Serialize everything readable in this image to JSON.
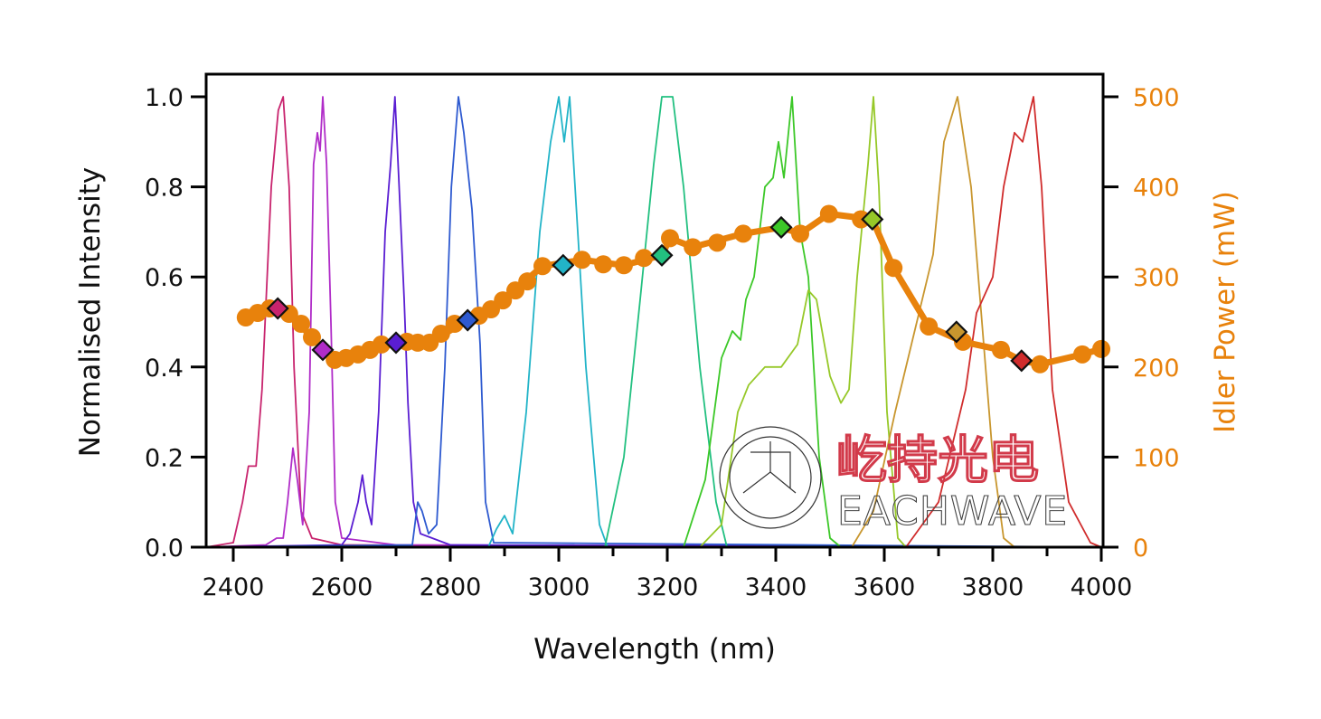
{
  "chart_data": {
    "type": "line",
    "title": "",
    "xlabel": "Wavelength (nm)",
    "ylabel": "Normalised Intensity",
    "y2label": "Idler Power (mW)",
    "xlim": [
      2350,
      4000
    ],
    "ylim": [
      0,
      1.0
    ],
    "y2lim": [
      0,
      500
    ],
    "grid": false,
    "xticks": [
      2400,
      2600,
      2800,
      3000,
      3200,
      3400,
      3600,
      3800,
      4000
    ],
    "xtick_labels": [
      "2400",
      "2600",
      "2800",
      "3000",
      "3200",
      "3400",
      "3600",
      "3800",
      "4000"
    ],
    "yticks": [
      0,
      0.2,
      0.4,
      0.6,
      0.8,
      1.0
    ],
    "ytick_labels": [
      "0.0",
      "0.2",
      "0.4",
      "0.6",
      "0.8",
      "1.0"
    ],
    "y2ticks": [
      0,
      100,
      200,
      300,
      400,
      500
    ],
    "y2tick_labels": [
      "0",
      "100",
      "200",
      "300",
      "400",
      "500"
    ],
    "accent_color": "#e8820c",
    "spectra": [
      {
        "name": "spectrum-2490",
        "color": "#c8246e",
        "points": [
          [
            2350,
            0
          ],
          [
            2400,
            0.01
          ],
          [
            2417,
            0.1
          ],
          [
            2428,
            0.18
          ],
          [
            2442,
            0.18
          ],
          [
            2453,
            0.35
          ],
          [
            2470,
            0.8
          ],
          [
            2483,
            0.97
          ],
          [
            2492,
            1.0
          ],
          [
            2503,
            0.8
          ],
          [
            2512,
            0.4
          ],
          [
            2525,
            0.08
          ],
          [
            2545,
            0.02
          ],
          [
            2600,
            0.005
          ],
          [
            4000,
            0
          ]
        ]
      },
      {
        "name": "spectrum-2565",
        "color": "#b02cc8",
        "points": [
          [
            2350,
            0
          ],
          [
            2460,
            0.005
          ],
          [
            2480,
            0.02
          ],
          [
            2492,
            0.02
          ],
          [
            2500,
            0.1
          ],
          [
            2510,
            0.22
          ],
          [
            2518,
            0.15
          ],
          [
            2528,
            0.05
          ],
          [
            2540,
            0.3
          ],
          [
            2548,
            0.85
          ],
          [
            2555,
            0.92
          ],
          [
            2560,
            0.88
          ],
          [
            2565,
            1.0
          ],
          [
            2572,
            0.85
          ],
          [
            2580,
            0.5
          ],
          [
            2588,
            0.1
          ],
          [
            2600,
            0.02
          ],
          [
            2700,
            0.005
          ],
          [
            4000,
            0
          ]
        ]
      },
      {
        "name": "spectrum-2700",
        "color": "#5a1ed2",
        "points": [
          [
            2350,
            0
          ],
          [
            2600,
            0.005
          ],
          [
            2615,
            0.03
          ],
          [
            2630,
            0.1
          ],
          [
            2638,
            0.16
          ],
          [
            2645,
            0.1
          ],
          [
            2655,
            0.05
          ],
          [
            2668,
            0.3
          ],
          [
            2680,
            0.7
          ],
          [
            2690,
            0.85
          ],
          [
            2698,
            1.0
          ],
          [
            2705,
            0.82
          ],
          [
            2715,
            0.55
          ],
          [
            2722,
            0.32
          ],
          [
            2732,
            0.1
          ],
          [
            2745,
            0.03
          ],
          [
            2800,
            0.005
          ],
          [
            4000,
            0
          ]
        ]
      },
      {
        "name": "spectrum-2820",
        "color": "#2e5ad0",
        "points": [
          [
            2350,
            0
          ],
          [
            2730,
            0.005
          ],
          [
            2740,
            0.1
          ],
          [
            2748,
            0.08
          ],
          [
            2760,
            0.03
          ],
          [
            2775,
            0.05
          ],
          [
            2790,
            0.4
          ],
          [
            2802,
            0.8
          ],
          [
            2815,
            1.0
          ],
          [
            2825,
            0.92
          ],
          [
            2840,
            0.75
          ],
          [
            2855,
            0.45
          ],
          [
            2865,
            0.1
          ],
          [
            2880,
            0.01
          ],
          [
            4000,
            0
          ]
        ]
      },
      {
        "name": "spectrum-3010",
        "color": "#22b4c8",
        "points": [
          [
            2350,
            0
          ],
          [
            2870,
            0
          ],
          [
            2885,
            0.04
          ],
          [
            2900,
            0.07
          ],
          [
            2915,
            0.03
          ],
          [
            2940,
            0.3
          ],
          [
            2965,
            0.7
          ],
          [
            2985,
            0.9
          ],
          [
            3000,
            1.0
          ],
          [
            3010,
            0.9
          ],
          [
            3020,
            1.0
          ],
          [
            3030,
            0.8
          ],
          [
            3050,
            0.4
          ],
          [
            3075,
            0.05
          ],
          [
            3090,
            0
          ],
          [
            4000,
            0
          ]
        ]
      },
      {
        "name": "spectrum-3200",
        "color": "#22c080",
        "points": [
          [
            2350,
            0
          ],
          [
            3085,
            0
          ],
          [
            3120,
            0.2
          ],
          [
            3150,
            0.55
          ],
          [
            3175,
            0.85
          ],
          [
            3190,
            1.0
          ],
          [
            3210,
            1.0
          ],
          [
            3230,
            0.8
          ],
          [
            3260,
            0.4
          ],
          [
            3290,
            0.1
          ],
          [
            3310,
            0
          ],
          [
            4000,
            0
          ]
        ]
      },
      {
        "name": "spectrum-3430",
        "color": "#3cc828",
        "points": [
          [
            2350,
            0
          ],
          [
            3230,
            0
          ],
          [
            3270,
            0.15
          ],
          [
            3300,
            0.42
          ],
          [
            3320,
            0.48
          ],
          [
            3335,
            0.46
          ],
          [
            3345,
            0.55
          ],
          [
            3360,
            0.6
          ],
          [
            3380,
            0.8
          ],
          [
            3395,
            0.82
          ],
          [
            3405,
            0.9
          ],
          [
            3415,
            0.82
          ],
          [
            3430,
            1.0
          ],
          [
            3445,
            0.7
          ],
          [
            3460,
            0.6
          ],
          [
            3480,
            0.2
          ],
          [
            3500,
            0.02
          ],
          [
            3520,
            0
          ],
          [
            4000,
            0
          ]
        ]
      },
      {
        "name": "spectrum-3580",
        "color": "#96c828",
        "points": [
          [
            2350,
            0
          ],
          [
            3260,
            0
          ],
          [
            3300,
            0.05
          ],
          [
            3330,
            0.3
          ],
          [
            3350,
            0.36
          ],
          [
            3380,
            0.4
          ],
          [
            3410,
            0.4
          ],
          [
            3440,
            0.45
          ],
          [
            3460,
            0.57
          ],
          [
            3475,
            0.55
          ],
          [
            3500,
            0.38
          ],
          [
            3520,
            0.32
          ],
          [
            3535,
            0.35
          ],
          [
            3550,
            0.6
          ],
          [
            3570,
            0.85
          ],
          [
            3580,
            1.0
          ],
          [
            3590,
            0.8
          ],
          [
            3605,
            0.3
          ],
          [
            3625,
            0.02
          ],
          [
            3640,
            0
          ],
          [
            4000,
            0
          ]
        ]
      },
      {
        "name": "spectrum-3735",
        "color": "#c8962e",
        "points": [
          [
            2350,
            0
          ],
          [
            3540,
            0
          ],
          [
            3580,
            0.08
          ],
          [
            3620,
            0.3
          ],
          [
            3660,
            0.5
          ],
          [
            3690,
            0.65
          ],
          [
            3710,
            0.9
          ],
          [
            3735,
            1.0
          ],
          [
            3760,
            0.8
          ],
          [
            3780,
            0.5
          ],
          [
            3800,
            0.2
          ],
          [
            3820,
            0.02
          ],
          [
            3840,
            0
          ],
          [
            4000,
            0
          ]
        ]
      },
      {
        "name": "spectrum-3875",
        "color": "#d02c2c",
        "points": [
          [
            2350,
            0
          ],
          [
            3640,
            0
          ],
          [
            3700,
            0.1
          ],
          [
            3750,
            0.35
          ],
          [
            3770,
            0.52
          ],
          [
            3800,
            0.6
          ],
          [
            3820,
            0.8
          ],
          [
            3840,
            0.92
          ],
          [
            3855,
            0.9
          ],
          [
            3875,
            1.0
          ],
          [
            3890,
            0.8
          ],
          [
            3910,
            0.35
          ],
          [
            3940,
            0.1
          ],
          [
            3980,
            0.01
          ],
          [
            4000,
            0
          ]
        ]
      }
    ],
    "idler_power": {
      "name": "Idler Power (mW)",
      "color": "#e8820c",
      "points": [
        [
          2423,
          255
        ],
        [
          2445,
          260
        ],
        [
          2467,
          265
        ],
        [
          2503,
          259
        ],
        [
          2525,
          248
        ],
        [
          2545,
          233
        ],
        [
          2587,
          208
        ],
        [
          2608,
          210
        ],
        [
          2630,
          214
        ],
        [
          2652,
          219
        ],
        [
          2673,
          225
        ],
        [
          2720,
          228
        ],
        [
          2740,
          227
        ],
        [
          2762,
          227
        ],
        [
          2783,
          237
        ],
        [
          2808,
          248
        ],
        [
          2853,
          257
        ],
        [
          2875,
          264
        ],
        [
          2897,
          274
        ],
        [
          2920,
          285
        ],
        [
          2942,
          295
        ],
        [
          2970,
          312
        ],
        [
          3043,
          319
        ],
        [
          3082,
          314
        ],
        [
          3120,
          313
        ],
        [
          3157,
          321
        ],
        [
          3205,
          343
        ],
        [
          3247,
          333
        ],
        [
          3292,
          338
        ],
        [
          3340,
          348
        ],
        [
          3445,
          348
        ],
        [
          3498,
          370
        ],
        [
          3557,
          364
        ],
        [
          3617,
          310
        ],
        [
          3682,
          245
        ],
        [
          3745,
          228
        ],
        [
          3815,
          219
        ],
        [
          3887,
          203
        ],
        [
          3965,
          214
        ],
        [
          4000,
          220
        ]
      ],
      "line": [
        [
          2423,
          255
        ],
        [
          2467,
          265
        ],
        [
          2503,
          259
        ],
        [
          2545,
          233
        ],
        [
          2587,
          208
        ],
        [
          2652,
          219
        ],
        [
          2700,
          227
        ],
        [
          2762,
          227
        ],
        [
          2832,
          252
        ],
        [
          2897,
          274
        ],
        [
          2970,
          312
        ],
        [
          3043,
          319
        ],
        [
          3120,
          313
        ],
        [
          3190,
          324
        ],
        [
          3205,
          343
        ],
        [
          3247,
          333
        ],
        [
          3340,
          348
        ],
        [
          3410,
          355
        ],
        [
          3445,
          348
        ],
        [
          3498,
          370
        ],
        [
          3578,
          364
        ],
        [
          3617,
          310
        ],
        [
          3682,
          245
        ],
        [
          3745,
          228
        ],
        [
          3815,
          219
        ],
        [
          3853,
          207
        ],
        [
          3887,
          203
        ],
        [
          3965,
          214
        ],
        [
          4000,
          220
        ]
      ]
    },
    "markers": [
      {
        "x": 2482,
        "y2": 265,
        "color": "#c8246e"
      },
      {
        "x": 2565,
        "y2": 219,
        "color": "#b02cc8"
      },
      {
        "x": 2700,
        "y2": 227,
        "color": "#5a1ed2"
      },
      {
        "x": 2832,
        "y2": 252,
        "color": "#2e5ad0"
      },
      {
        "x": 3008,
        "y2": 313,
        "color": "#22b4c8"
      },
      {
        "x": 3190,
        "y2": 324,
        "color": "#22c080"
      },
      {
        "x": 3410,
        "y2": 355,
        "color": "#3cc828"
      },
      {
        "x": 3578,
        "y2": 364,
        "color": "#96c828"
      },
      {
        "x": 3733,
        "y2": 239,
        "color": "#c8962e"
      },
      {
        "x": 3853,
        "y2": 207,
        "color": "#d02c2c"
      }
    ]
  },
  "watermark": {
    "cn": "屹持光电",
    "en": "EACHWAVE"
  }
}
